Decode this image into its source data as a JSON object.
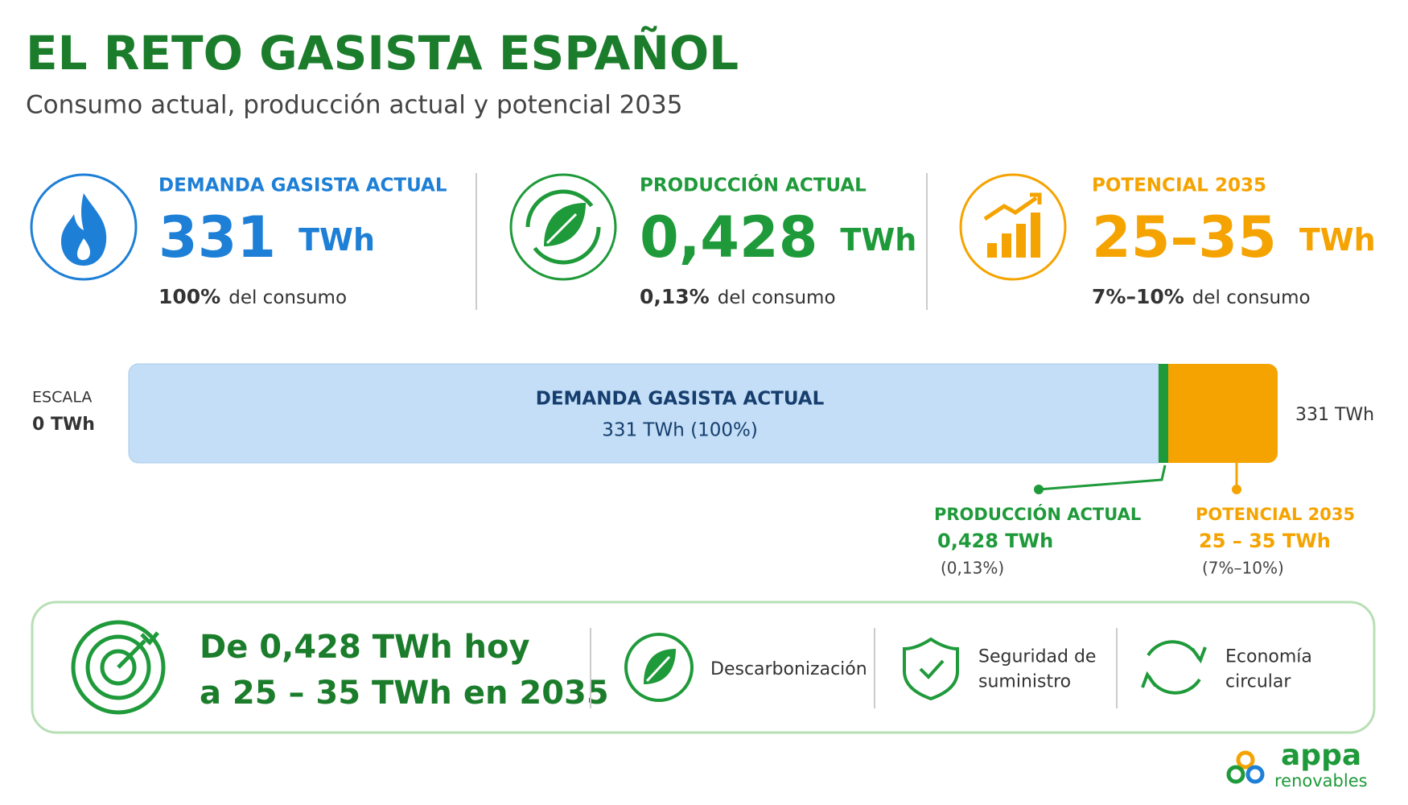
{
  "header": {
    "title": "EL RETO GASISTA ESPAÑOL",
    "subtitle": "Consumo actual, producción actual y potencial 2035"
  },
  "cards": [
    {
      "label": "DEMANDA GASISTA ACTUAL",
      "value": "331",
      "unit": "TWh",
      "share": "100%",
      "share_text": "del consumo"
    },
    {
      "label": "PRODUCCIÓN ACTUAL",
      "value": "0,428",
      "unit": "TWh",
      "share": "0,13%",
      "share_text": "del consumo"
    },
    {
      "label": "POTENCIAL 2035",
      "value": "25–35",
      "unit": "TWh",
      "share": "7%–10%",
      "share_text": "del consumo"
    }
  ],
  "scale": {
    "label": "ESCALA",
    "start": "0 TWh",
    "end": "331 TWh",
    "bar_title": "DEMANDA GASISTA ACTUAL",
    "bar_value": "331 TWh (100%)",
    "callouts": [
      {
        "title": "PRODUCCIÓN ACTUAL",
        "value": "0,428 TWh",
        "share": "(0,13%)"
      },
      {
        "title": "POTENCIAL 2035",
        "value": "25 – 35 TWh",
        "share": "(7%–10%)"
      }
    ]
  },
  "footer": {
    "goal": [
      "De 0,428 TWh hoy",
      "a 25 – 35 TWh en 2035"
    ],
    "benefits": [
      [
        "Descarbonización"
      ],
      [
        "Seguridad de",
        "suministro"
      ],
      [
        "Economía",
        "circular"
      ]
    ]
  },
  "logo": {
    "name": "appa",
    "sub": "renovables"
  }
}
